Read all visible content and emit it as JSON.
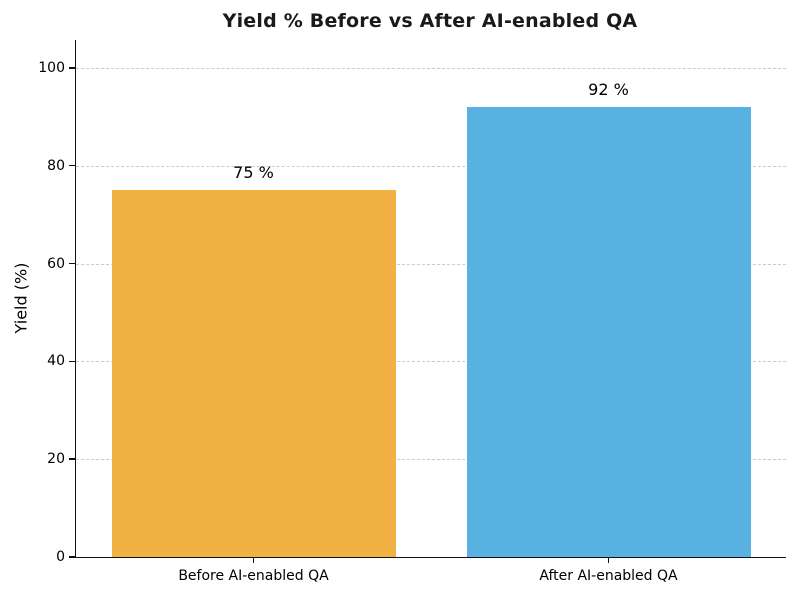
{
  "chart_data": {
    "type": "bar",
    "title": "Yield % Before vs After AI-enabled QA",
    "categories": [
      "Before AI-enabled QA",
      "After AI-enabled QA"
    ],
    "values": [
      75,
      92
    ],
    "value_labels": [
      "75 %",
      "92 %"
    ],
    "bar_colors": [
      "#F1B143",
      "#57B1E1"
    ],
    "xlabel": "",
    "ylabel": "Yield (%)",
    "ylim": [
      0,
      105.7
    ],
    "yticks": [
      0,
      20,
      40,
      60,
      80,
      100
    ],
    "bar_width_fraction": 0.8,
    "grid": "horizontal-dashed",
    "grid_color": "#cccccc",
    "spine_color": "#111111",
    "text_color": "#000000",
    "background_color": "#ffffff",
    "legend": "none"
  }
}
